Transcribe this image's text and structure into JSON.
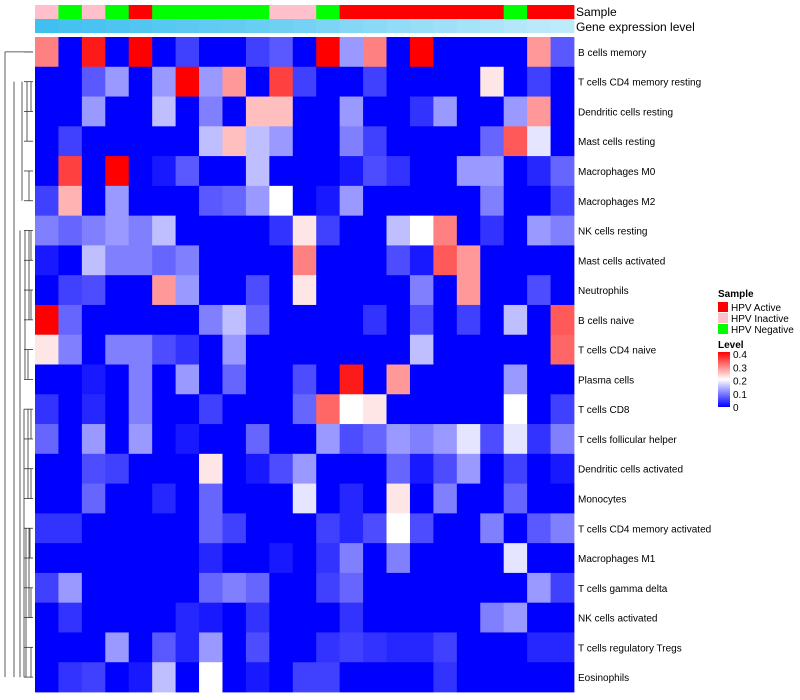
{
  "chart_data": {
    "type": "heatmap",
    "title": "",
    "annotation_tracks": [
      {
        "name": "Sample",
        "values": [
          "HPV Inactive",
          "HPV Negative",
          "HPV Inactive",
          "HPV Negative",
          "HPV Active",
          "HPV Negative",
          "HPV Negative",
          "HPV Negative",
          "HPV Negative",
          "HPV Negative",
          "HPV Inactive",
          "HPV Inactive",
          "HPV Negative",
          "HPV Active",
          "HPV Active",
          "HPV Active",
          "HPV Active",
          "HPV Active",
          "HPV Active",
          "HPV Active",
          "HPV Negative",
          "HPV Active",
          "HPV Active"
        ]
      },
      {
        "name": "Gene expression level",
        "values": [
          0.96,
          0.94,
          0.92,
          0.9,
          0.88,
          0.86,
          0.84,
          0.82,
          0.8,
          0.78,
          0.75,
          0.72,
          0.69,
          0.66,
          0.63,
          0.6,
          0.57,
          0.54,
          0.51,
          0.48,
          0.45,
          0.42,
          0.4
        ]
      }
    ],
    "legend": {
      "sample_title": "Sample",
      "sample_entries": [
        {
          "label": "HPV Active",
          "color": "#ff0000"
        },
        {
          "label": "HPV Inactive",
          "color": "#ffc0cb"
        },
        {
          "label": "HPV Negative",
          "color": "#00ff00"
        }
      ],
      "level_title": "Level",
      "level_ticks": [
        "0.4",
        "0.3",
        "0.2",
        "0.1",
        "0"
      ],
      "level_range": [
        0,
        0.4
      ]
    },
    "color_scale": {
      "low": "#0000ff",
      "mid": "#ffffff",
      "high": "#ff0000",
      "min": 0,
      "max": 0.4
    },
    "rows": [
      "B cells memory",
      "T cells CD4 memory resting",
      "Dendritic cells resting",
      "Mast cells resting",
      "Macrophages M0",
      "Macrophages M2",
      "NK cells resting",
      "Mast cells activated",
      "Neutrophils",
      "B cells naive",
      "T cells CD4 naive",
      "Plasma cells",
      "T cells CD8",
      "T cells follicular helper",
      "Dendritic cells activated",
      "Monocytes",
      "T cells CD4 memory activated",
      "Macrophages M1",
      "T cells gamma delta",
      "NK cells activated",
      "T cells regulatory  Tregs",
      "Eosinophils"
    ],
    "values": [
      [
        0.3,
        0,
        0.38,
        0,
        0.4,
        0,
        0.05,
        0,
        0,
        0.05,
        0.07,
        0,
        0.4,
        0.12,
        0.3,
        0,
        0.4,
        0,
        0,
        0,
        0,
        0.28,
        0.07
      ],
      [
        0,
        0,
        0.07,
        0.12,
        0,
        0.12,
        0.4,
        0.12,
        0.28,
        0,
        0.35,
        0.05,
        0,
        0,
        0.05,
        0,
        0,
        0,
        0,
        0.22,
        0,
        0.05,
        0
      ],
      [
        0,
        0,
        0.12,
        0,
        0,
        0.15,
        0,
        0.1,
        0,
        0.25,
        0.25,
        0,
        0,
        0.12,
        0,
        0,
        0.04,
        0.12,
        0,
        0,
        0.12,
        0.28,
        0
      ],
      [
        0,
        0.05,
        0,
        0,
        0,
        0,
        0,
        0.15,
        0.25,
        0.15,
        0.12,
        0,
        0,
        0.1,
        0.05,
        0,
        0,
        0,
        0,
        0.08,
        0.33,
        0.18,
        0
      ],
      [
        0,
        0.35,
        0,
        0.4,
        0,
        0.02,
        0.07,
        0,
        0,
        0.15,
        0,
        0,
        0,
        0.02,
        0.06,
        0.04,
        0,
        0,
        0.12,
        0.12,
        0,
        0.03,
        0.08
      ],
      [
        0.05,
        0.26,
        0,
        0.12,
        0,
        0,
        0,
        0.07,
        0.08,
        0.12,
        0.2,
        0,
        0.02,
        0.12,
        0,
        0,
        0,
        0,
        0,
        0.1,
        0,
        0,
        0.05
      ],
      [
        0.1,
        0.08,
        0.1,
        0.12,
        0.1,
        0.15,
        0,
        0,
        0,
        0,
        0.04,
        0.22,
        0.05,
        0,
        0,
        0.15,
        0.2,
        0.3,
        0,
        0.04,
        0,
        0.12,
        0.1
      ],
      [
        0.02,
        0,
        0.15,
        0.1,
        0.1,
        0.08,
        0.1,
        0,
        0,
        0,
        0,
        0.3,
        0,
        0,
        0,
        0.06,
        0.02,
        0.33,
        0.28,
        0,
        0,
        0,
        0
      ],
      [
        0,
        0.05,
        0.06,
        0,
        0,
        0.28,
        0.12,
        0,
        0,
        0.06,
        0,
        0.22,
        0,
        0,
        0,
        0,
        0.1,
        0,
        0.28,
        0,
        0,
        0.06,
        0
      ],
      [
        0.4,
        0.08,
        0,
        0,
        0,
        0,
        0,
        0.1,
        0.15,
        0.08,
        0,
        0,
        0,
        0,
        0.04,
        0,
        0.06,
        0,
        0.05,
        0,
        0.15,
        0,
        0.33
      ],
      [
        0.22,
        0.1,
        0,
        0.1,
        0.1,
        0.06,
        0.04,
        0,
        0.12,
        0,
        0,
        0,
        0,
        0,
        0,
        0,
        0.15,
        0,
        0,
        0,
        0,
        0,
        0.32
      ],
      [
        0,
        0,
        0.02,
        0,
        0.1,
        0,
        0.12,
        0,
        0.08,
        0,
        0,
        0.06,
        0,
        0.38,
        0,
        0.28,
        0,
        0,
        0,
        0,
        0.12,
        0,
        0
      ],
      [
        0.04,
        0,
        0.03,
        0,
        0.1,
        0,
        0,
        0.05,
        0,
        0,
        0,
        0.08,
        0.32,
        0.2,
        0.22,
        0,
        0,
        0,
        0,
        0,
        0.2,
        0,
        0.05
      ],
      [
        0.08,
        0,
        0.12,
        0,
        0.12,
        0,
        0.02,
        0,
        0,
        0.08,
        0,
        0,
        0.12,
        0.06,
        0.08,
        0.12,
        0.1,
        0.12,
        0.18,
        0.06,
        0.18,
        0.04,
        0.1
      ],
      [
        0,
        0,
        0.06,
        0.05,
        0,
        0,
        0,
        0.22,
        0,
        0.02,
        0.06,
        0.12,
        0,
        0,
        0,
        0.08,
        0.02,
        0.06,
        0.12,
        0,
        0.05,
        0,
        0.02
      ],
      [
        0,
        0,
        0.08,
        0,
        0,
        0.03,
        0,
        0.08,
        0,
        0,
        0,
        0.18,
        0,
        0.03,
        0,
        0.22,
        0,
        0.1,
        0,
        0,
        0.08,
        0,
        0
      ],
      [
        0.04,
        0.04,
        0,
        0,
        0,
        0,
        0,
        0.08,
        0.05,
        0,
        0,
        0,
        0.05,
        0.03,
        0.06,
        0.2,
        0.06,
        0,
        0,
        0.1,
        0,
        0.07,
        0.1
      ],
      [
        0,
        0,
        0,
        0,
        0,
        0,
        0,
        0.03,
        0,
        0,
        0.02,
        0,
        0.04,
        0.1,
        0,
        0.1,
        0,
        0,
        0,
        0,
        0.18,
        0,
        0
      ],
      [
        0.05,
        0.12,
        0,
        0,
        0,
        0,
        0,
        0.08,
        0.1,
        0.08,
        0,
        0,
        0.05,
        0.08,
        0,
        0,
        0,
        0,
        0,
        0,
        0,
        0.12,
        0.05
      ],
      [
        0,
        0.04,
        0,
        0,
        0,
        0,
        0.03,
        0.02,
        0,
        0.04,
        0,
        0,
        0,
        0.04,
        0,
        0,
        0,
        0,
        0,
        0.1,
        0.12,
        0,
        0
      ],
      [
        0,
        0,
        0,
        0.12,
        0,
        0.07,
        0.03,
        0.12,
        0,
        0.06,
        0,
        0,
        0.04,
        0.05,
        0.04,
        0.03,
        0.03,
        0.05,
        0,
        0,
        0,
        0.03,
        0.03
      ],
      [
        0,
        0.04,
        0.05,
        0,
        0.02,
        0.15,
        0,
        0.2,
        0,
        0.02,
        0,
        0.05,
        0.05,
        0,
        0,
        0,
        0,
        0.04,
        0,
        0,
        0,
        0,
        0
      ]
    ],
    "row_dendrogram": true,
    "column_dendrogram": false
  }
}
